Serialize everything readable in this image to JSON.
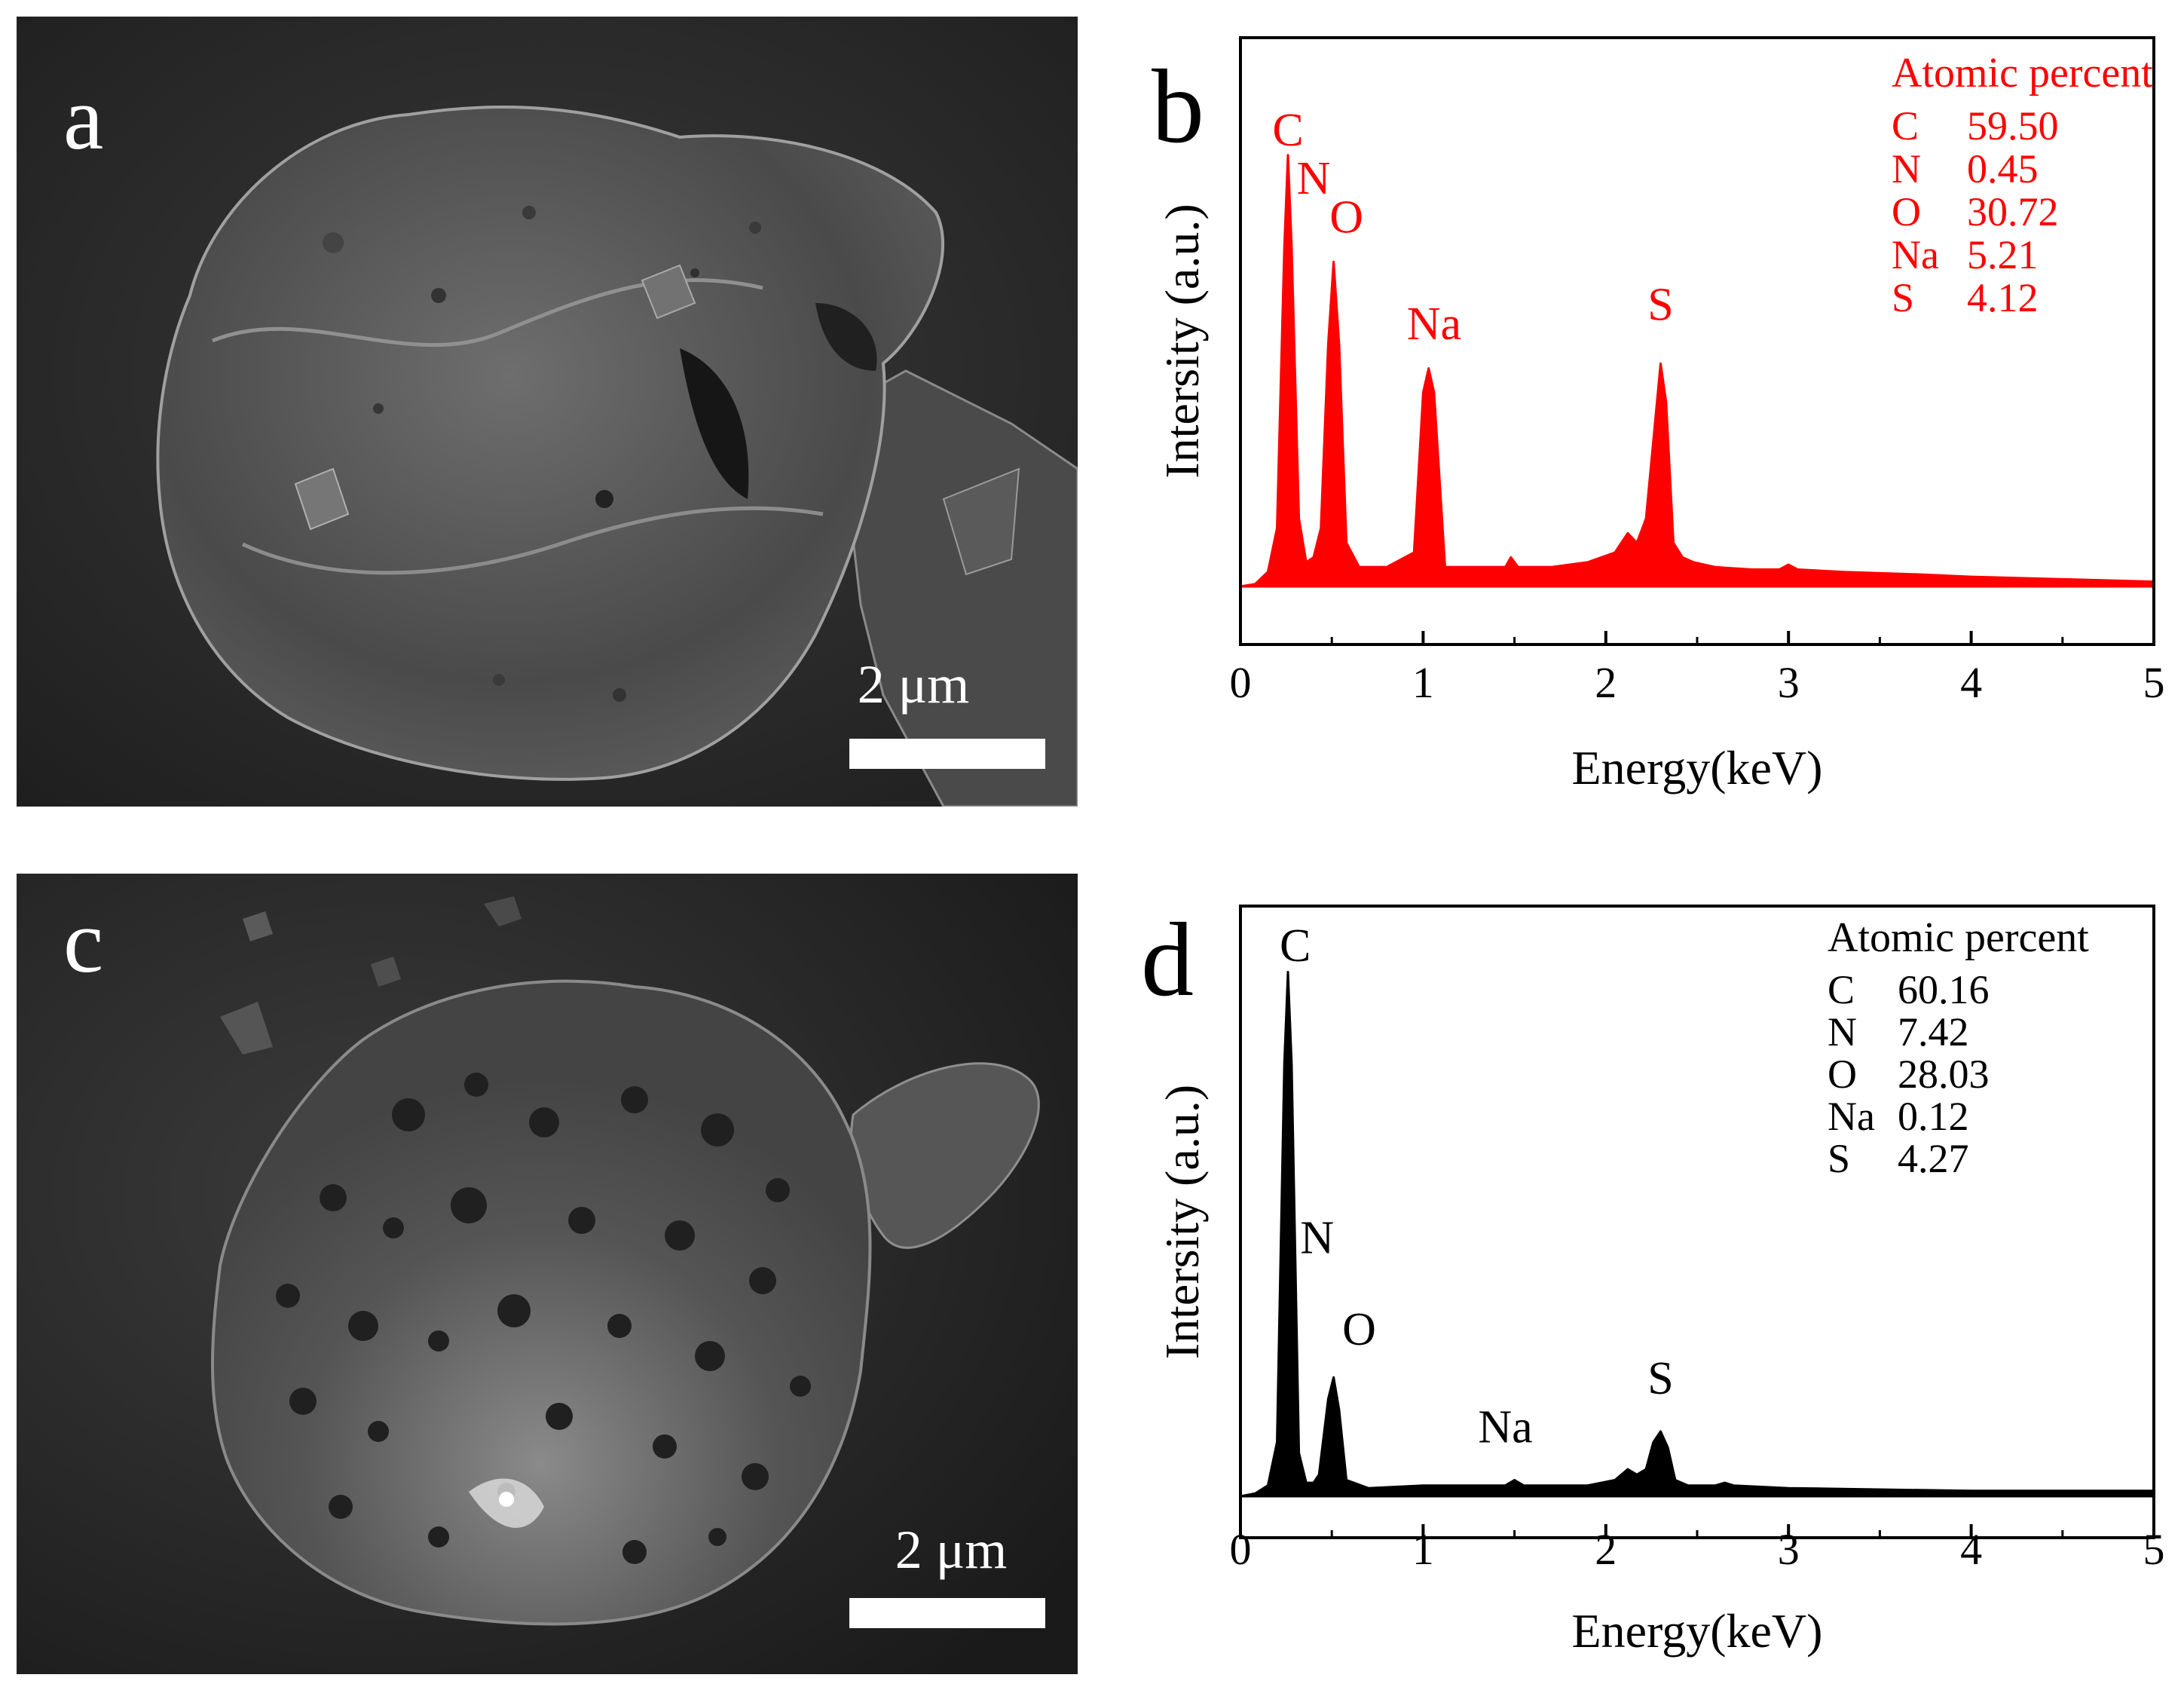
{
  "panels": {
    "a": {
      "letter": "a",
      "scale_bar": "2 μm"
    },
    "c": {
      "letter": "c",
      "scale_bar": "2 μm"
    }
  },
  "chart_data": [
    {
      "id": "b",
      "panel_letter": "b",
      "type": "line",
      "fill": "area",
      "color": "#ff0000",
      "xlabel": "Energy(keV)",
      "ylabel": "Intersity (a.u.)",
      "xlim": [
        0,
        5
      ],
      "xticks": [
        "0",
        "1",
        "2",
        "3",
        "4",
        "5"
      ],
      "ylim": [
        0,
        100
      ],
      "grid": false,
      "series": [
        {
          "x": [
            0.0,
            0.08,
            0.15,
            0.2,
            0.24,
            0.26,
            0.28,
            0.32,
            0.36,
            0.4,
            0.44,
            0.48,
            0.51,
            0.54,
            0.58,
            0.65,
            0.8,
            0.95,
            1.0,
            1.03,
            1.06,
            1.12,
            1.3,
            1.45,
            1.48,
            1.52,
            1.7,
            1.9,
            2.05,
            2.12,
            2.17,
            2.22,
            2.26,
            2.3,
            2.33,
            2.37,
            2.42,
            2.48,
            2.6,
            2.8,
            2.95,
            3.0,
            3.05,
            3.3,
            3.7,
            4.0,
            4.5,
            5.0
          ],
          "y": [
            0,
            0.5,
            3,
            12,
            70,
            89,
            70,
            14,
            5,
            6,
            12,
            50,
            67,
            50,
            9,
            4,
            4,
            7,
            40,
            45,
            40,
            4,
            4,
            4,
            6,
            4,
            4,
            5,
            7,
            11,
            9,
            14,
            30,
            46,
            38,
            9,
            6,
            5,
            4,
            3.5,
            3.5,
            4.5,
            3.5,
            3,
            2.5,
            2,
            1.5,
            1
          ]
        }
      ],
      "peak_labels": [
        {
          "text": "C",
          "x": 0.26,
          "y": 91
        },
        {
          "text": "N",
          "x": 0.4,
          "y": 81
        },
        {
          "text": "O",
          "x": 0.58,
          "y": 73
        },
        {
          "text": "Na",
          "x": 1.06,
          "y": 51
        },
        {
          "text": "S",
          "x": 2.3,
          "y": 55
        }
      ],
      "legend_title": "Atomic percent",
      "legend_placement": "top-right",
      "legend_rows": [
        {
          "element": "C",
          "value": "59.50"
        },
        {
          "element": "N",
          "value": "0.45"
        },
        {
          "element": "O",
          "value": "30.72"
        },
        {
          "element": "Na",
          "value": "5.21"
        },
        {
          "element": "S",
          "value": "4.12"
        }
      ]
    },
    {
      "id": "d",
      "panel_letter": "d",
      "type": "line",
      "fill": "area",
      "color": "#000000",
      "xlabel": "Energy(keV)",
      "ylabel": "Intersity (a.u.)",
      "xlim": [
        0,
        5
      ],
      "xticks": [
        "0",
        "1",
        "2",
        "3",
        "4",
        "5"
      ],
      "ylim": [
        0,
        100
      ],
      "grid": false,
      "series": [
        {
          "x": [
            0.0,
            0.08,
            0.15,
            0.2,
            0.24,
            0.26,
            0.28,
            0.32,
            0.36,
            0.4,
            0.43,
            0.48,
            0.51,
            0.54,
            0.58,
            0.7,
            1.0,
            1.45,
            1.5,
            1.55,
            1.9,
            2.05,
            2.12,
            2.17,
            2.22,
            2.26,
            2.3,
            2.34,
            2.38,
            2.45,
            2.6,
            2.65,
            2.7,
            3.0,
            4.0,
            5.0
          ],
          "y": [
            0,
            0.5,
            2,
            10,
            80,
            97,
            80,
            8,
            2.5,
            2.5,
            4,
            18,
            22,
            16,
            3,
            1.5,
            2,
            2,
            3,
            2,
            2,
            3,
            5,
            4,
            5,
            10,
            12,
            9,
            3,
            2,
            2,
            2.5,
            2,
            1.5,
            1,
            1
          ]
        }
      ],
      "peak_labels": [
        {
          "text": "C",
          "x": 0.3,
          "y": 99
        },
        {
          "text": "N",
          "x": 0.42,
          "y": 45
        },
        {
          "text": "O",
          "x": 0.65,
          "y": 28
        },
        {
          "text": "Na",
          "x": 1.45,
          "y": 10
        },
        {
          "text": "S",
          "x": 2.3,
          "y": 19
        }
      ],
      "legend_title": "Atomic percent",
      "legend_placement": "top-right",
      "legend_rows": [
        {
          "element": "C",
          "value": "60.16"
        },
        {
          "element": "N",
          "value": "7.42"
        },
        {
          "element": "O",
          "value": "28.03"
        },
        {
          "element": "Na",
          "value": "0.12"
        },
        {
          "element": "S",
          "value": "4.27"
        }
      ]
    }
  ]
}
